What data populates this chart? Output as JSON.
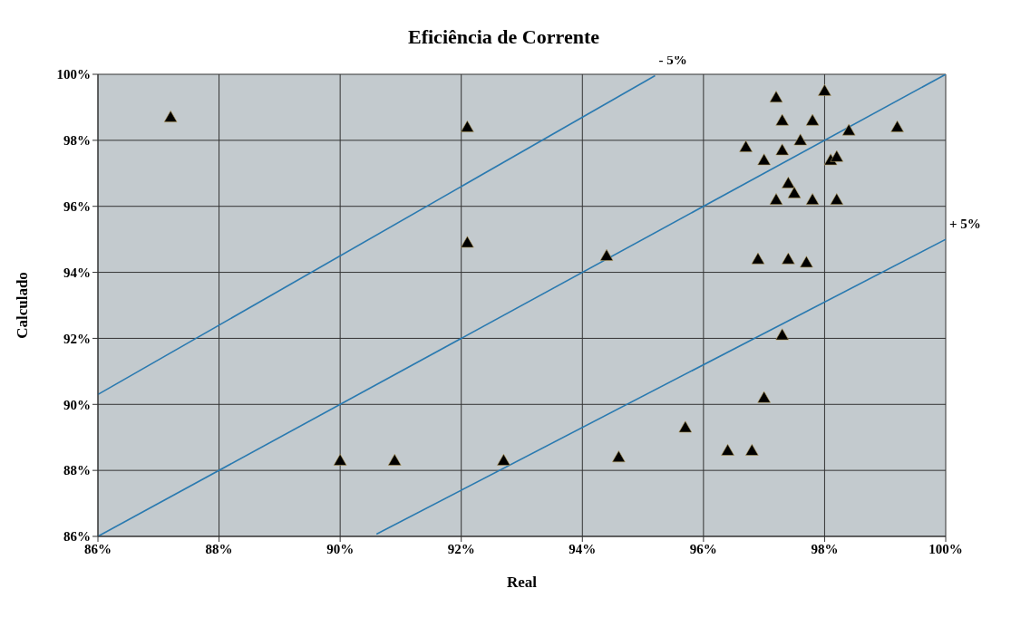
{
  "chart_data": {
    "type": "scatter",
    "title": "Eficiência de Corrente",
    "xlabel": "Real",
    "ylabel": "Calculado",
    "xlim": [
      86,
      100
    ],
    "xticks": [
      {
        "value": 86,
        "label": "86%"
      },
      {
        "value": 88,
        "label": "88%"
      },
      {
        "value": 90,
        "label": "90%"
      },
      {
        "value": 92,
        "label": "92%"
      },
      {
        "value": 94,
        "label": "94%"
      },
      {
        "value": 96,
        "label": "96%"
      },
      {
        "value": 98,
        "label": "98%"
      },
      {
        "value": 100,
        "label": "100%"
      }
    ],
    "ylim": [
      86,
      100
    ],
    "yticks": [
      {
        "value": 86,
        "label": "86%"
      },
      {
        "value": 88,
        "label": "88%"
      },
      {
        "value": 90,
        "label": "90%"
      },
      {
        "value": 92,
        "label": "92%"
      },
      {
        "value": 94,
        "label": "94%"
      },
      {
        "value": 96,
        "label": "96%"
      },
      {
        "value": 98,
        "label": "98%"
      },
      {
        "value": 100,
        "label": "100%"
      }
    ],
    "grid": true,
    "legend": false,
    "marker": "triangle",
    "line_style": "solid",
    "series": [
      {
        "type": "line",
        "color": "#2a7ab0",
        "x": [
          86,
          100
        ],
        "values": [
          86,
          100
        ],
        "marker": "none"
      },
      {
        "type": "line",
        "name": "- 5%",
        "color": "#2a7ab0",
        "x": [
          86,
          95.2
        ],
        "values": [
          90.3,
          99.96
        ],
        "marker": "none"
      },
      {
        "type": "line",
        "name": "+ 5%",
        "color": "#2a7ab0",
        "x": [
          90.6,
          100
        ],
        "values": [
          86.07,
          95
        ],
        "marker": "none"
      },
      {
        "color": "#000000",
        "x": [
          87.2,
          92.1,
          92.1,
          94.4,
          97.2,
          98.0,
          97.3,
          97.8,
          98.4,
          99.2,
          97.6,
          96.7,
          97.3,
          97.0,
          98.1,
          98.2,
          97.4,
          97.5,
          97.2,
          97.8,
          98.2,
          96.9,
          97.4,
          97.7,
          97.3,
          97.0,
          95.7,
          96.4,
          96.8,
          94.6,
          92.7,
          90.9,
          90.0
        ],
        "values": [
          98.7,
          98.4,
          94.9,
          94.5,
          99.3,
          99.5,
          98.6,
          98.6,
          98.3,
          98.4,
          98.0,
          97.8,
          97.7,
          97.4,
          97.4,
          97.5,
          96.7,
          96.4,
          96.2,
          96.2,
          96.2,
          94.4,
          94.4,
          94.3,
          92.1,
          90.2,
          89.3,
          88.6,
          88.6,
          88.4,
          88.3,
          88.3,
          88.3
        ]
      }
    ]
  }
}
